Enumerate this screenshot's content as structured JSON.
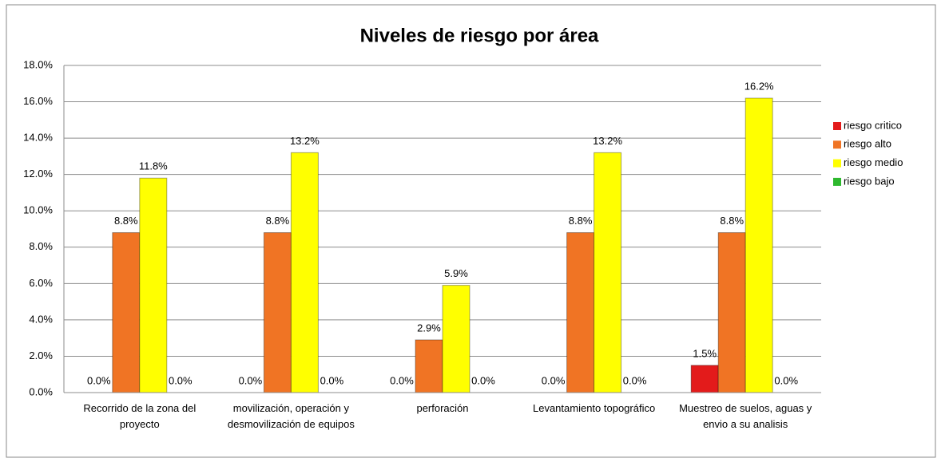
{
  "chart_data": {
    "type": "bar",
    "title": "Niveles de riesgo por área",
    "categories": [
      "Recorrido de la zona del proyecto",
      "movilización, operación y desmovilización de equipos",
      "perforación",
      "Levantamiento topográfico",
      "Muestreo de suelos, aguas y envio a su analisis"
    ],
    "series": [
      {
        "name": "riesgo critico",
        "color": "#e31b1b",
        "values": [
          0.0,
          0.0,
          0.0,
          0.0,
          1.5
        ],
        "value_labels": [
          "0.0%",
          "0.0%",
          "0.0%",
          "0.0%",
          "1.5%"
        ]
      },
      {
        "name": "riesgo alto",
        "color": "#f07424",
        "values": [
          8.8,
          8.8,
          2.9,
          8.8,
          8.8
        ],
        "value_labels": [
          "8.8%",
          "8.8%",
          "2.9%",
          "8.8%",
          "8.8%"
        ]
      },
      {
        "name": "riesgo medio",
        "color": "#ffff00",
        "values": [
          11.8,
          13.2,
          5.9,
          13.2,
          16.2
        ],
        "value_labels": [
          "11.8%",
          "13.2%",
          "5.9%",
          "13.2%",
          "16.2%"
        ]
      },
      {
        "name": "riesgo bajo",
        "color": "#2eb82e",
        "values": [
          0.0,
          0.0,
          0.0,
          0.0,
          0.0
        ],
        "value_labels": [
          "0.0%",
          "0.0%",
          "0.0%",
          "0.0%",
          "0.0%"
        ]
      }
    ],
    "ylim": [
      0,
      18
    ],
    "yticks": [
      {
        "value": 0,
        "label": "0.0%"
      },
      {
        "value": 2,
        "label": "2.0%"
      },
      {
        "value": 4,
        "label": "4.0%"
      },
      {
        "value": 6,
        "label": "6.0%"
      },
      {
        "value": 8,
        "label": "8.0%"
      },
      {
        "value": 10,
        "label": "10.0%"
      },
      {
        "value": 12,
        "label": "12.0%"
      },
      {
        "value": 14,
        "label": "14.0%"
      },
      {
        "value": 16,
        "label": "16.0%"
      },
      {
        "value": 18,
        "label": "18.0%"
      }
    ],
    "grid": true,
    "legend": "right"
  }
}
